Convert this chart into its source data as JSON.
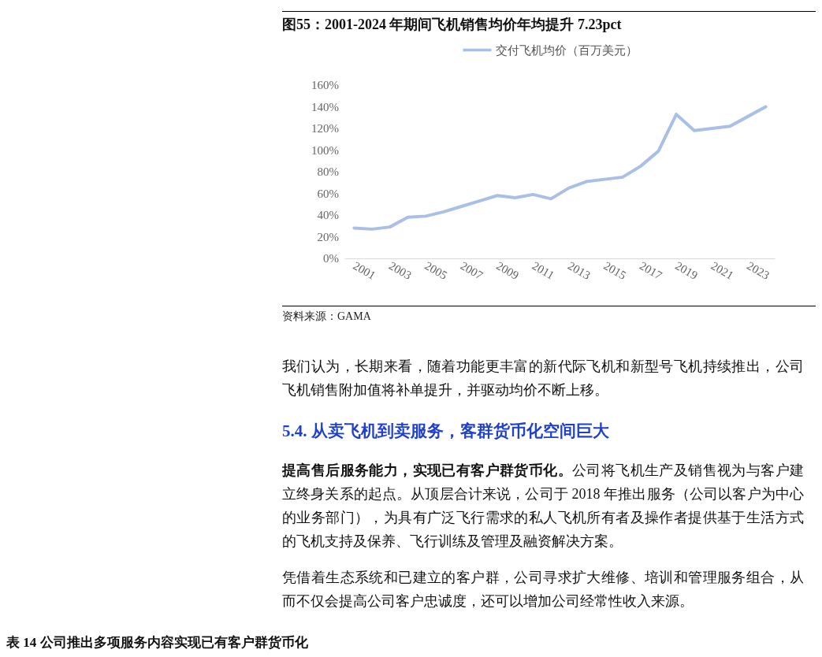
{
  "chart_data": {
    "type": "line",
    "title": "图55：2001-2024 年期间飞机销售均价年均提升 7.23pct",
    "categories": [
      "2001",
      null,
      "2003",
      null,
      "2005",
      null,
      "2007",
      null,
      "2009",
      null,
      "2011",
      null,
      "2013",
      null,
      "2015",
      null,
      "2017",
      null,
      "2019",
      null,
      "2021",
      null,
      "2023",
      null
    ],
    "series": [
      {
        "name": "交付飞机均价（百万美元）",
        "color": "#a9bfe6",
        "values": [
          28,
          27,
          29,
          38,
          39,
          43,
          48,
          53,
          58,
          56,
          59,
          55,
          65,
          71,
          73,
          75,
          85,
          99,
          133,
          118,
          120,
          122,
          131,
          140
        ]
      }
    ],
    "ylim": [
      0,
      160
    ],
    "yticks": [
      {
        "value": 0,
        "label": "0%"
      },
      {
        "value": 20,
        "label": "20%"
      },
      {
        "value": 40,
        "label": "40%"
      },
      {
        "value": 60,
        "label": "60%"
      },
      {
        "value": 80,
        "label": "80%"
      },
      {
        "value": 100,
        "label": "100%"
      },
      {
        "value": 120,
        "label": "120%"
      },
      {
        "value": 140,
        "label": "140%"
      },
      {
        "value": 160,
        "label": "160%"
      }
    ],
    "legend": "top",
    "marker": "none",
    "line_style": "solid",
    "annotations": [
      "资料来源：GAMA",
      "我们认为，长期来看，随着功能更丰富的新代际飞机和新型号飞机持续推出，公司飞机销售附加值将补单提升，并驱动均价不断上移。",
      "5.4.  从卖飞机到卖服务，客群货币化空间巨大",
      "提高售后服务能力，实现已有客户群货币化。",
      "公司将飞机生产及销售视为与客户建立终身关系的起点。从顶层合计来说，公司于 2018 年推出服务（公司以客户为中心的业务部门），为具有广泛飞行需求的私人飞机所有者及操作者提供基于生活方式的飞机支持及保养、飞行训练及管理及融资解决方案。",
      "凭借着生态系统和已建立的客户群，公司寻求扩大维修、培训和管理服务组合，从而不仅会提高公司客户忠诚度，还可以增加公司经常性收入来源。",
      "表 14  公司推出多项服务内容实现已有客户群货币化"
    ]
  }
}
